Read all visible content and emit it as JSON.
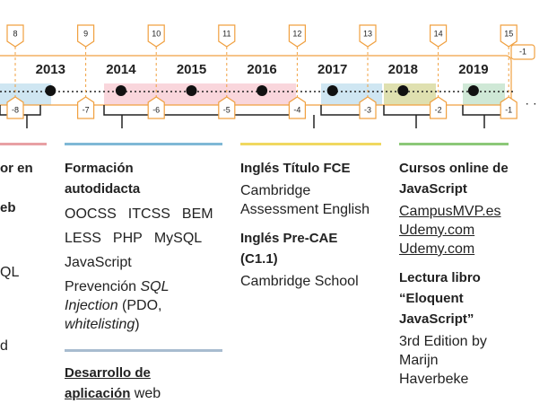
{
  "timeline": {
    "top_markers": [
      "8",
      "9",
      "10",
      "11",
      "12",
      "13",
      "14",
      "15"
    ],
    "years": [
      "2013",
      "2014",
      "2015",
      "2016",
      "2017",
      "2018",
      "2019"
    ],
    "bottom_markers": [
      "-8",
      "-7",
      "-6",
      "-5",
      "-4",
      "-3",
      "-2",
      "-1"
    ],
    "side_marker": "-1"
  },
  "columns": [
    {
      "lines": [
        "or en",
        "eb",
        "QL",
        "d"
      ]
    },
    {
      "title": "Formación autodidacta",
      "tags": [
        [
          "OOCSS",
          "ITCSS",
          "BEM"
        ],
        [
          "LESS",
          "PHP",
          "MySQL"
        ],
        [
          "JavaScript"
        ]
      ],
      "note": [
        "Prevención ",
        "SQL Injection",
        " (PDO, ",
        "whitelisting",
        ")"
      ],
      "project": [
        "Desarrollo de aplicación",
        " web"
      ]
    },
    {
      "items": [
        {
          "title": "Inglés Título FCE",
          "subtitle": "Cambridge Assessment English"
        },
        {
          "title": "Inglés Pre-CAE (C1.1)",
          "subtitle": "Cambridge School"
        }
      ]
    },
    {
      "courses": {
        "title": "Cursos online de JavaScript",
        "links": [
          "CampusMVP.es",
          "Udemy.com",
          "Udemy.com"
        ]
      },
      "book": {
        "title": "Lectura libro “Eloquent JavaScript”",
        "subtitle": "3rd Edition by Marijn Haverbeke"
      }
    }
  ]
}
